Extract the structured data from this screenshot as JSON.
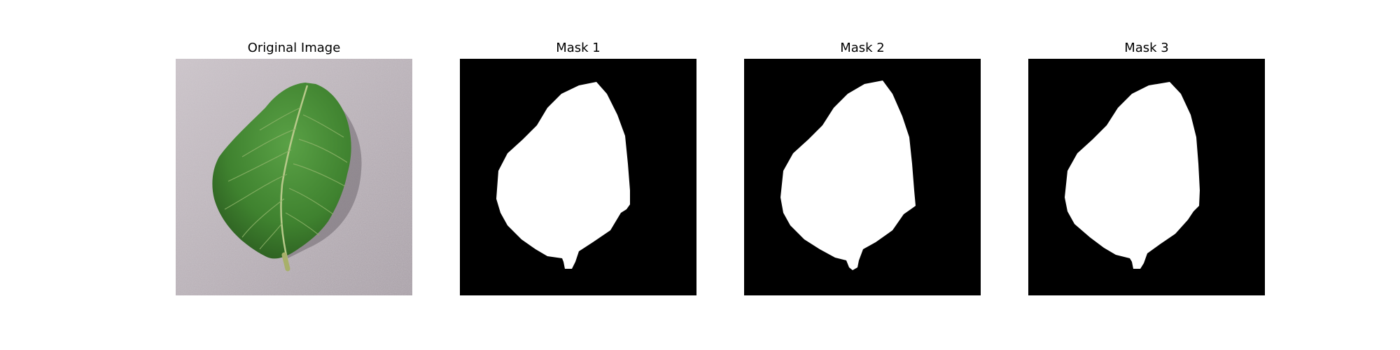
{
  "panels": [
    {
      "title": "Original Image"
    },
    {
      "title": "Mask 1"
    },
    {
      "title": "Mask 2"
    },
    {
      "title": "Mask 3"
    }
  ],
  "colors": {
    "background": "#ffffff",
    "surface": "#b5adb4",
    "leaf_dark": "#2f6a24",
    "leaf_light": "#5ba347",
    "mask_fg": "#ffffff",
    "mask_bg": "#000000"
  }
}
